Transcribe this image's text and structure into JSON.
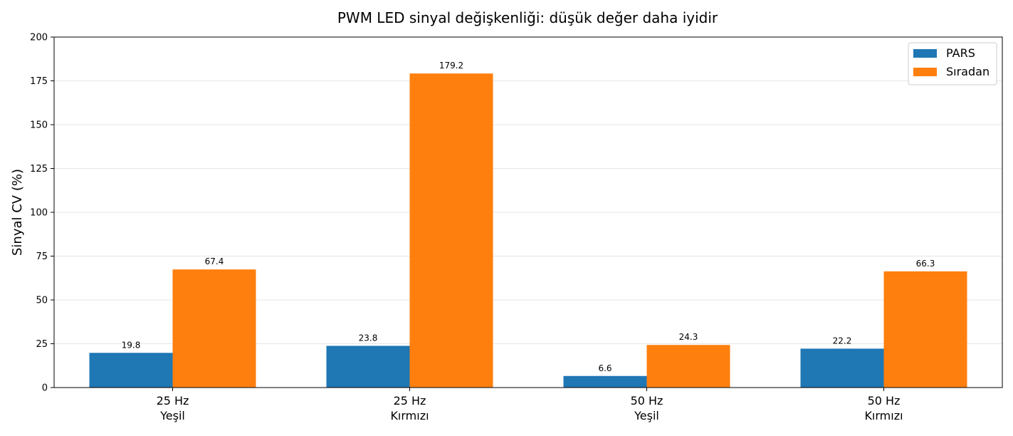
{
  "chart_data": {
    "type": "bar",
    "title": "PWM LED sinyal değişkenliği: düşük değer daha iyidir",
    "xlabel": "",
    "ylabel": "Sinyal CV (%)",
    "ylim": [
      0,
      200
    ],
    "yticks": [
      "0",
      "25",
      "50",
      "75",
      "100",
      "125",
      "150",
      "175",
      "200"
    ],
    "grid": "y",
    "legend_position": "top-right",
    "categories": [
      [
        "25 Hz",
        "Yeşil"
      ],
      [
        "25 Hz",
        "Kırmızı"
      ],
      [
        "50 Hz",
        "Yeşil"
      ],
      [
        "50 Hz",
        "Kırmızı"
      ]
    ],
    "series": [
      {
        "name": "PARS",
        "color": "#1f77b4",
        "values": [
          19.8,
          23.8,
          6.6,
          22.2
        ],
        "labels": [
          "19.8",
          "23.8",
          "6.6",
          "22.2"
        ]
      },
      {
        "name": "Sıradan",
        "color": "#ff7f0e",
        "values": [
          67.4,
          179.2,
          24.3,
          66.3
        ],
        "labels": [
          "67.4",
          "179.2",
          "24.3",
          "66.3"
        ]
      }
    ]
  }
}
